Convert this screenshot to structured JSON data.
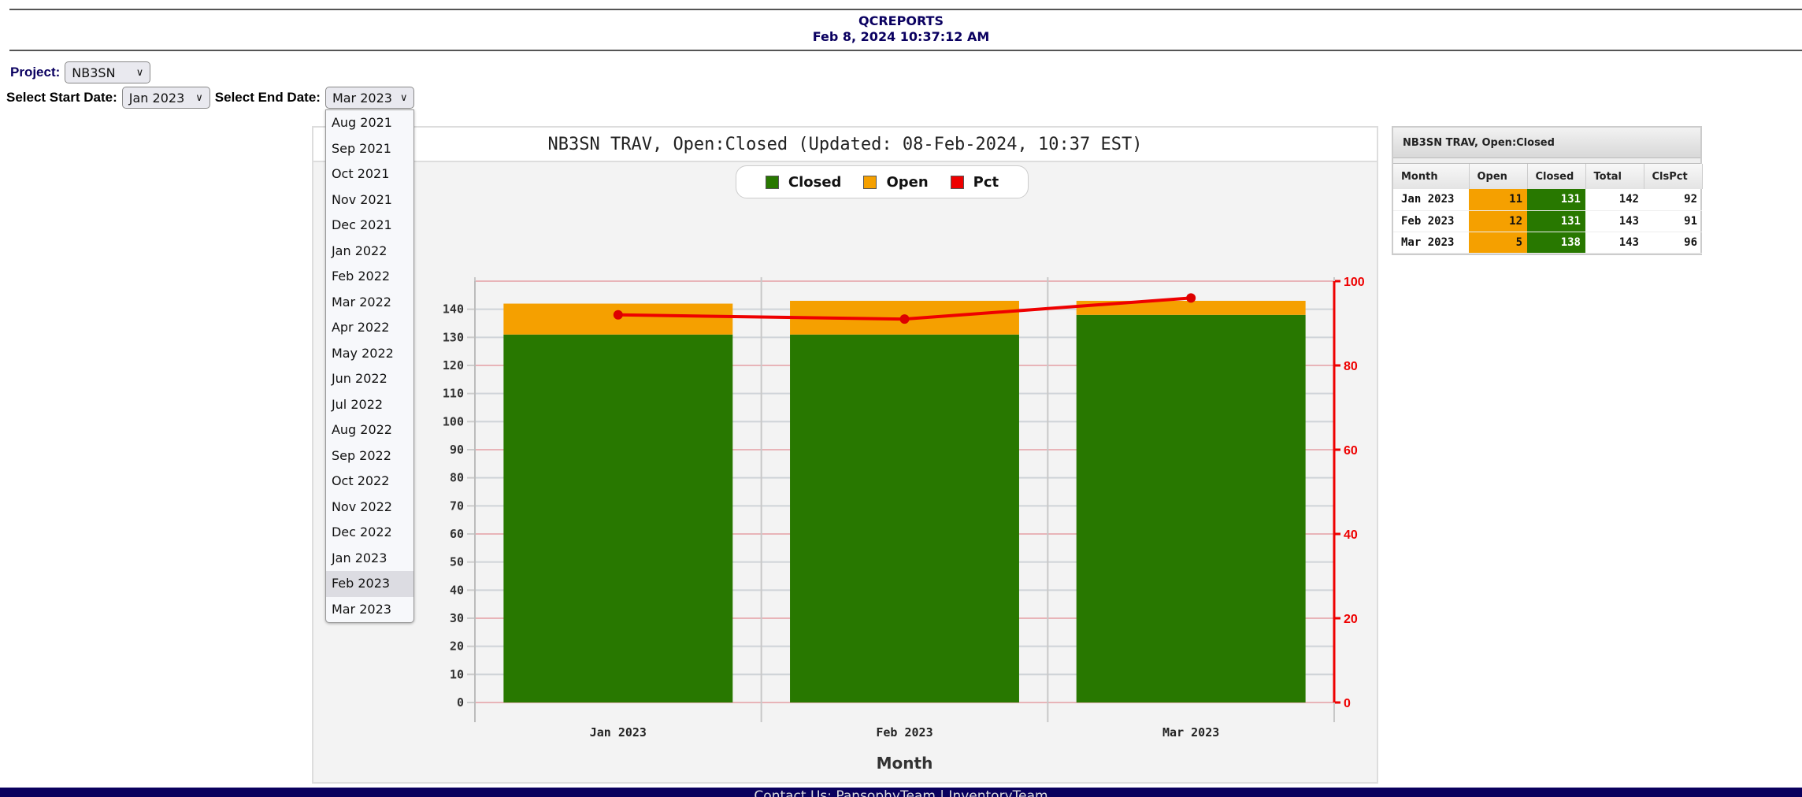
{
  "header": {
    "title": "QCREPORTS",
    "datetime": "Feb 8, 2024 10:37:12 AM"
  },
  "form": {
    "project_label": "Project:",
    "project_value": "NB3SN",
    "start_label": "Select Start Date:",
    "start_value": "Jan 2023",
    "end_label": "Select End Date:",
    "end_value": "Mar 2023"
  },
  "dropdown": {
    "options": [
      "Aug 2021",
      "Sep 2021",
      "Oct 2021",
      "Nov 2021",
      "Dec 2021",
      "Jan 2022",
      "Feb 2022",
      "Mar 2022",
      "Apr 2022",
      "May 2022",
      "Jun 2022",
      "Jul 2022",
      "Aug 2022",
      "Sep 2022",
      "Oct 2022",
      "Nov 2022",
      "Dec 2022",
      "Jan 2023",
      "Feb 2023",
      "Mar 2023"
    ],
    "highlighted": "Feb 2023"
  },
  "chart_data": {
    "type": "bar",
    "title": "NB3SN TRAV, Open:Closed (Updated: 08-Feb-2024, 10:37 EST)",
    "xlabel": "Month",
    "ylabel": "",
    "ylabel_right": "",
    "categories": [
      "Jan 2023",
      "Feb 2023",
      "Mar 2023"
    ],
    "stacked": true,
    "series": [
      {
        "name": "Closed",
        "type": "bar",
        "color": "#287800",
        "values": [
          131,
          131,
          138
        ]
      },
      {
        "name": "Open",
        "type": "bar",
        "color": "#f5a000",
        "values": [
          11,
          12,
          5
        ]
      },
      {
        "name": "Pct",
        "type": "line",
        "axis": "right",
        "color": "#ee0000",
        "values": [
          92,
          91,
          96
        ]
      }
    ],
    "ylim": [
      0,
      150
    ],
    "yticks": [
      0,
      10,
      20,
      30,
      40,
      50,
      60,
      70,
      80,
      90,
      100,
      110,
      120,
      130,
      140
    ],
    "ylim_right": [
      0,
      100
    ],
    "yticks_right": [
      0,
      20,
      40,
      60,
      80,
      100
    ],
    "grid": true,
    "legend": "top-center"
  },
  "table": {
    "title": "NB3SN TRAV, Open:Closed",
    "headers": [
      "Month",
      "Open",
      "Closed",
      "Total",
      "ClsPct"
    ],
    "rows": [
      [
        "Jan 2023",
        "11",
        "131",
        "142",
        "92"
      ],
      [
        "Feb 2023",
        "12",
        "131",
        "143",
        "91"
      ],
      [
        "Mar 2023",
        "5",
        "138",
        "143",
        "96"
      ]
    ]
  },
  "footer": {
    "text": "Contact Us: PansophyTeam | InventoryTeam"
  }
}
